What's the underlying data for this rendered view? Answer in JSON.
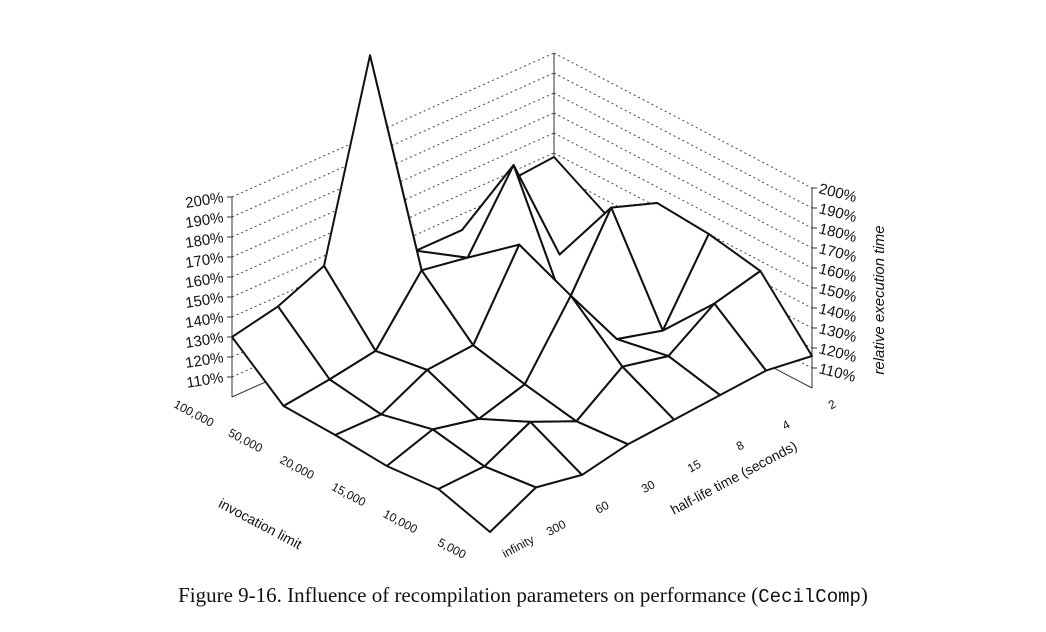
{
  "caption": {
    "text": "Figure 9-16.  Influence of recompilation parameters on performance (",
    "code": "CecilComp",
    "close": ")"
  },
  "chart_data": {
    "type": "surface",
    "title": "",
    "x_axis": {
      "label": "invocation limit",
      "ticks": [
        "100,000",
        "50,000",
        "20,000",
        "15,000",
        "10,000",
        "5,000"
      ]
    },
    "y_axis": {
      "label": "half-life time (seconds)",
      "ticks": [
        "infinity",
        "300",
        "60",
        "30",
        "15",
        "8",
        "4",
        "2"
      ]
    },
    "z_axis": {
      "label": "relative execution time",
      "ticks": [
        "110%",
        "120%",
        "130%",
        "140%",
        "150%",
        "160%",
        "170%",
        "180%",
        "190%",
        "200%"
      ],
      "range": [
        100,
        200
      ]
    },
    "grid": true,
    "rows_half_life": [
      "infinity",
      "300",
      "60",
      "30",
      "15",
      "8",
      "4",
      "2"
    ],
    "columns_invocation_limit": [
      "5,000",
      "10,000",
      "15,000",
      "20,000",
      "50,000",
      "100,000"
    ],
    "values": [
      [
        100,
        108,
        106,
        108,
        109,
        130
      ],
      [
        112,
        109,
        114,
        108,
        112,
        135
      ],
      [
        108,
        121,
        109,
        120,
        116,
        145
      ],
      [
        113,
        111,
        116,
        122,
        146,
        240
      ],
      [
        115,
        128,
        150,
        162,
        142,
        132
      ],
      [
        117,
        123,
        118,
        120,
        178,
        132
      ],
      [
        119,
        139,
        112,
        160,
        123,
        146
      ],
      [
        116,
        145,
        150,
        152,
        133,
        148
      ]
    ]
  }
}
